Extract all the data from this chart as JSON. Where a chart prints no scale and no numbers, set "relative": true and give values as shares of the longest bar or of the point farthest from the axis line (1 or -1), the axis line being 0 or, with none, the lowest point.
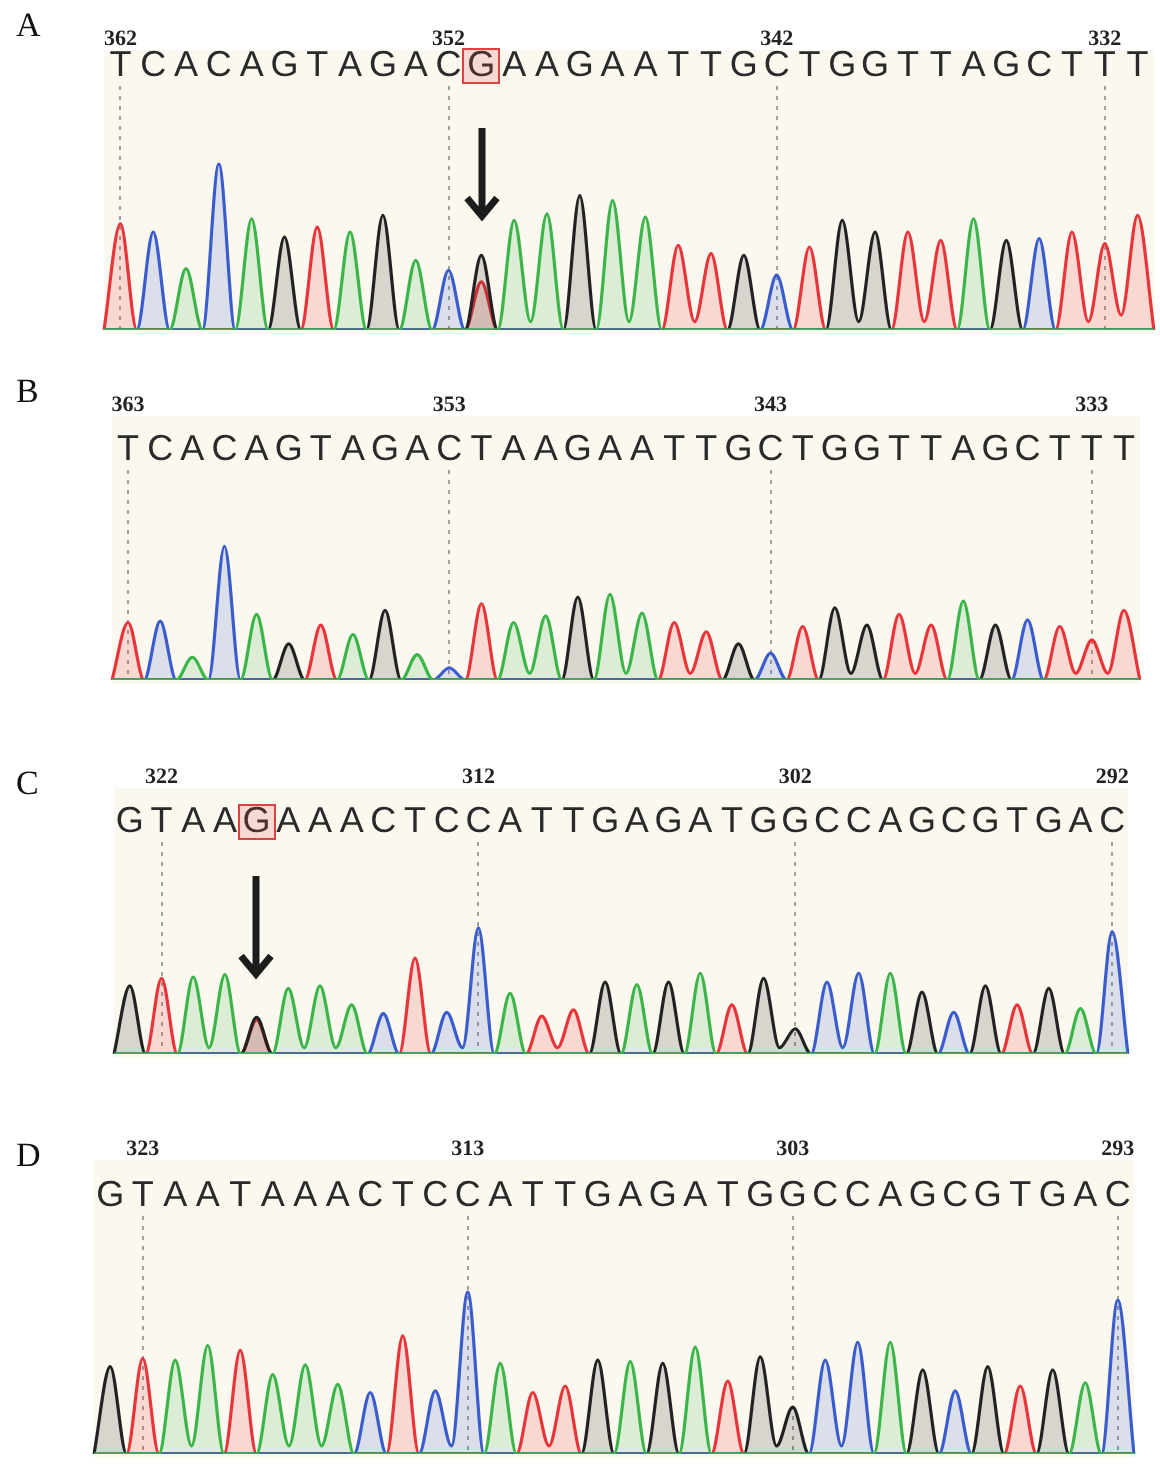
{
  "chart_data": [
    {
      "type": "area",
      "title": "A",
      "relative": true,
      "grid": "x",
      "categories": [
        null,
        "T",
        null,
        "C",
        null,
        "A",
        null,
        "C",
        null,
        "A",
        null,
        "G",
        null,
        "T",
        null,
        "A",
        null,
        "G",
        null,
        "A",
        null,
        "C",
        null,
        "G",
        null,
        "A",
        null,
        "A",
        null,
        "G",
        null,
        "A",
        null,
        "A",
        null,
        "T",
        null,
        "T",
        null,
        "G",
        null,
        "C",
        null,
        "T",
        null,
        "G",
        null,
        "G",
        null,
        "T",
        null,
        "T",
        null,
        "A",
        null,
        "G",
        null,
        "C",
        null,
        "T",
        null,
        "T",
        null,
        "T",
        null
      ],
      "x2lim": [
        362.5,
        330.5
      ],
      "x2ticks": [
        362,
        352,
        342,
        332
      ],
      "series": [
        {
          "color": "#3bb44a",
          "values": [
            0,
            0,
            0,
            0,
            0,
            0.37,
            0,
            0,
            0,
            0.67,
            0,
            0,
            0,
            0,
            0,
            0.59,
            0,
            0,
            0,
            0.42,
            0,
            0,
            0,
            0,
            0,
            0.66,
            0.05,
            0.7,
            0,
            0,
            0,
            0.78,
            0.05,
            0.68,
            0,
            0,
            0,
            0,
            0,
            0,
            0,
            0,
            0,
            0,
            0,
            0,
            0,
            0,
            0,
            0,
            0,
            0,
            0,
            0.67,
            0,
            0,
            0,
            0,
            0,
            0,
            0,
            0,
            0,
            0,
            0
          ]
        },
        {
          "color": "#3a5ccc",
          "values": [
            0,
            0,
            0,
            0.59,
            0,
            0,
            0,
            1,
            0,
            0,
            0,
            0,
            0,
            0,
            0,
            0,
            0,
            0,
            0,
            0,
            0,
            0.36,
            0,
            0,
            0,
            0,
            0,
            0,
            0,
            0,
            0,
            0,
            0,
            0,
            0,
            0,
            0,
            0,
            0,
            0,
            0,
            0.33,
            0,
            0,
            0,
            0,
            0,
            0,
            0,
            0,
            0,
            0,
            0,
            0,
            0,
            0,
            0,
            0.55,
            0,
            0,
            0,
            0,
            0,
            0,
            0
          ]
        },
        {
          "color": "#222222",
          "values": [
            0,
            0,
            0,
            0,
            0,
            0,
            0,
            0,
            0,
            0,
            0,
            0.56,
            0,
            0,
            0,
            0,
            0,
            0.69,
            0,
            0,
            0,
            0,
            0,
            0.45,
            0,
            0,
            0,
            0,
            0,
            0.81,
            0,
            0,
            0,
            0,
            0,
            0,
            0,
            0,
            0,
            0.45,
            0,
            0,
            0,
            0,
            0,
            0.66,
            0.05,
            0.59,
            0,
            0,
            0,
            0,
            0,
            0,
            0,
            0.54,
            0,
            0,
            0,
            0,
            0,
            0,
            0,
            0,
            0
          ]
        },
        {
          "color": "#e8353b",
          "values": [
            0,
            0.64,
            0,
            0,
            0,
            0,
            0,
            0,
            0,
            0,
            0,
            0,
            0,
            0.62,
            0,
            0,
            0,
            0,
            0,
            0,
            0,
            0,
            0,
            0.29,
            0,
            0,
            0,
            0,
            0,
            0,
            0,
            0,
            0,
            0,
            0,
            0.51,
            0.05,
            0.46,
            0,
            0,
            0,
            0,
            0,
            0.5,
            0,
            0,
            0,
            0,
            0,
            0.59,
            0.05,
            0.54,
            0,
            0,
            0,
            0,
            0,
            0,
            0,
            0.59,
            0.05,
            0.52,
            0.09,
            0.69,
            0
          ]
        }
      ]
    },
    {
      "type": "area",
      "title": "B",
      "relative": true,
      "grid": "x",
      "categories": [
        null,
        "T",
        null,
        "C",
        null,
        "A",
        null,
        "C",
        null,
        "A",
        null,
        "G",
        null,
        "T",
        null,
        "A",
        null,
        "G",
        null,
        "A",
        null,
        "C",
        null,
        "T",
        null,
        "A",
        null,
        "A",
        null,
        "G",
        null,
        "A",
        null,
        "A",
        null,
        "T",
        null,
        "T",
        null,
        "G",
        null,
        "C",
        null,
        "T",
        null,
        "G",
        null,
        "G",
        null,
        "T",
        null,
        "T",
        null,
        "A",
        null,
        "G",
        null,
        "C",
        null,
        "T",
        null,
        "T",
        null,
        "T",
        null
      ],
      "x2lim": [
        363.5,
        331.5
      ],
      "x2ticks": [
        363,
        353,
        343,
        333
      ],
      "series": [
        {
          "color": "#3bb44a",
          "values": [
            0,
            0,
            0,
            0,
            0,
            0.17,
            0,
            0,
            0,
            0.49,
            0,
            0,
            0,
            0,
            0,
            0.34,
            0,
            0,
            0,
            0.19,
            0,
            0,
            0,
            0,
            0,
            0.43,
            0.05,
            0.48,
            0,
            0,
            0,
            0.64,
            0.05,
            0.5,
            0,
            0,
            0,
            0,
            0,
            0,
            0,
            0,
            0,
            0,
            0,
            0,
            0,
            0,
            0,
            0,
            0,
            0,
            0,
            0.59,
            0,
            0,
            0,
            0,
            0,
            0,
            0,
            0,
            0,
            0,
            0
          ]
        },
        {
          "color": "#3a5ccc",
          "values": [
            0,
            0,
            0,
            0.44,
            0,
            0,
            0,
            1,
            0,
            0,
            0,
            0,
            0,
            0,
            0,
            0,
            0,
            0,
            0,
            0,
            0,
            0.09,
            0,
            0,
            0,
            0,
            0,
            0,
            0,
            0,
            0,
            0,
            0,
            0,
            0,
            0,
            0,
            0,
            0,
            0,
            0,
            0.2,
            0,
            0,
            0,
            0,
            0,
            0,
            0,
            0,
            0,
            0,
            0,
            0,
            0,
            0,
            0,
            0.45,
            0,
            0,
            0,
            0,
            0,
            0,
            0
          ]
        },
        {
          "color": "#222222",
          "values": [
            0,
            0,
            0,
            0,
            0,
            0,
            0,
            0,
            0,
            0,
            0,
            0.27,
            0,
            0,
            0,
            0,
            0,
            0.52,
            0,
            0,
            0,
            0,
            0,
            0,
            0,
            0,
            0,
            0,
            0,
            0.62,
            0,
            0,
            0,
            0,
            0,
            0,
            0,
            0,
            0,
            0.27,
            0,
            0,
            0,
            0,
            0,
            0.54,
            0.05,
            0.41,
            0,
            0,
            0,
            0,
            0,
            0,
            0,
            0.41,
            0,
            0,
            0,
            0,
            0,
            0,
            0,
            0,
            0
          ]
        },
        {
          "color": "#e8353b",
          "values": [
            0,
            0.43,
            0,
            0,
            0,
            0,
            0,
            0,
            0,
            0,
            0,
            0,
            0,
            0.41,
            0,
            0,
            0,
            0,
            0,
            0,
            0,
            0,
            0,
            0.57,
            0,
            0,
            0,
            0,
            0,
            0,
            0,
            0,
            0,
            0,
            0,
            0.43,
            0.05,
            0.36,
            0,
            0,
            0,
            0,
            0,
            0.4,
            0,
            0,
            0,
            0,
            0,
            0.49,
            0.05,
            0.41,
            0,
            0,
            0,
            0,
            0,
            0,
            0,
            0.4,
            0.05,
            0.3,
            0.05,
            0.52,
            0
          ]
        }
      ]
    },
    {
      "type": "area",
      "title": "C",
      "relative": true,
      "grid": "x",
      "categories": [
        null,
        "G",
        null,
        "T",
        null,
        "A",
        null,
        "A",
        null,
        "G",
        null,
        "A",
        null,
        "A",
        null,
        "A",
        null,
        "C",
        null,
        "T",
        null,
        "C",
        null,
        "C",
        null,
        "A",
        null,
        "T",
        null,
        "T",
        null,
        "G",
        null,
        "A",
        null,
        "G",
        null,
        "A",
        null,
        "T",
        null,
        "G",
        null,
        "G",
        null,
        "C",
        null,
        "C",
        null,
        "A",
        null,
        "G",
        null,
        "C",
        null,
        "G",
        null,
        "T",
        null,
        "G",
        null,
        "A",
        null,
        "C",
        null
      ],
      "x2lim": [
        323.5,
        291.5
      ],
      "x2ticks": [
        322,
        312,
        302,
        292
      ],
      "series": [
        {
          "color": "#3bb44a",
          "values": [
            0,
            0,
            0,
            0,
            0,
            0.61,
            0.05,
            0.63,
            0,
            0,
            0,
            0.52,
            0.05,
            0.54,
            0.05,
            0.39,
            0,
            0,
            0,
            0,
            0,
            0,
            0,
            0,
            0,
            0.48,
            0,
            0,
            0,
            0,
            0,
            0,
            0,
            0.55,
            0,
            0,
            0,
            0.64,
            0,
            0,
            0,
            0,
            0,
            0,
            0,
            0,
            0,
            0,
            0,
            0.64,
            0,
            0,
            0,
            0,
            0,
            0,
            0,
            0,
            0,
            0,
            0,
            0.36,
            0,
            0,
            0
          ]
        },
        {
          "color": "#3a5ccc",
          "values": [
            0,
            0,
            0,
            0,
            0,
            0,
            0,
            0,
            0,
            0,
            0,
            0,
            0,
            0,
            0,
            0,
            0,
            0.32,
            0,
            0,
            0,
            0.33,
            0.05,
            1,
            0,
            0,
            0,
            0,
            0,
            0,
            0,
            0,
            0,
            0,
            0,
            0,
            0,
            0,
            0,
            0,
            0,
            0,
            0,
            0,
            0,
            0.57,
            0.05,
            0.64,
            0,
            0,
            0,
            0,
            0,
            0.33,
            0,
            0,
            0,
            0,
            0,
            0,
            0,
            0,
            0,
            0.97,
            0
          ]
        },
        {
          "color": "#222222",
          "values": [
            0,
            0.54,
            0,
            0,
            0,
            0,
            0,
            0,
            0,
            0.29,
            0,
            0,
            0,
            0,
            0,
            0,
            0,
            0,
            0,
            0,
            0,
            0,
            0,
            0,
            0,
            0,
            0,
            0,
            0,
            0,
            0,
            0.57,
            0,
            0,
            0,
            0.57,
            0,
            0,
            0,
            0,
            0,
            0.6,
            0.05,
            0.2,
            0,
            0,
            0,
            0,
            0,
            0,
            0,
            0.49,
            0,
            0,
            0,
            0.54,
            0,
            0,
            0,
            0.52,
            0,
            0,
            0,
            0,
            0
          ]
        },
        {
          "color": "#e8353b",
          "values": [
            0,
            0,
            0,
            0.6,
            0,
            0,
            0,
            0,
            0,
            0.27,
            0,
            0,
            0,
            0,
            0,
            0,
            0,
            0,
            0,
            0.76,
            0,
            0,
            0,
            0,
            0,
            0,
            0,
            0.3,
            0.05,
            0.35,
            0,
            0,
            0,
            0,
            0,
            0,
            0,
            0,
            0,
            0.39,
            0,
            0,
            0,
            0,
            0,
            0,
            0,
            0,
            0,
            0,
            0,
            0,
            0,
            0,
            0,
            0,
            0,
            0.39,
            0,
            0,
            0,
            0,
            0,
            0,
            0
          ]
        }
      ]
    },
    {
      "type": "area",
      "title": "D",
      "relative": true,
      "grid": "x",
      "categories": [
        null,
        "G",
        null,
        "T",
        null,
        "A",
        null,
        "A",
        null,
        "T",
        null,
        "A",
        null,
        "A",
        null,
        "A",
        null,
        "C",
        null,
        "T",
        null,
        "C",
        null,
        "C",
        null,
        "A",
        null,
        "T",
        null,
        "T",
        null,
        "G",
        null,
        "A",
        null,
        "G",
        null,
        "A",
        null,
        "T",
        null,
        "G",
        null,
        "G",
        null,
        "C",
        null,
        "C",
        null,
        "A",
        null,
        "G",
        null,
        "C",
        null,
        "G",
        null,
        "T",
        null,
        "G",
        null,
        "A",
        null,
        "C",
        null
      ],
      "x2lim": [
        324.5,
        292.5
      ],
      "x2ticks": [
        323,
        313,
        303,
        293
      ],
      "series": [
        {
          "color": "#3bb44a",
          "values": [
            0,
            0,
            0,
            0,
            0,
            0.58,
            0.05,
            0.67,
            0,
            0,
            0,
            0.49,
            0.05,
            0.55,
            0.05,
            0.43,
            0,
            0,
            0,
            0,
            0,
            0,
            0,
            0,
            0,
            0.56,
            0,
            0,
            0,
            0,
            0,
            0,
            0,
            0.57,
            0,
            0,
            0,
            0.66,
            0,
            0,
            0,
            0,
            0,
            0,
            0,
            0,
            0,
            0,
            0,
            0.69,
            0,
            0,
            0,
            0,
            0,
            0,
            0,
            0,
            0,
            0,
            0,
            0.44,
            0,
            0,
            0
          ]
        },
        {
          "color": "#3a5ccc",
          "values": [
            0,
            0,
            0,
            0,
            0,
            0,
            0,
            0,
            0,
            0,
            0,
            0,
            0,
            0,
            0,
            0,
            0,
            0.38,
            0,
            0,
            0,
            0.39,
            0.05,
            1,
            0,
            0,
            0,
            0,
            0,
            0,
            0,
            0,
            0,
            0,
            0,
            0,
            0,
            0,
            0,
            0,
            0,
            0,
            0,
            0,
            0,
            0.58,
            0.05,
            0.69,
            0,
            0,
            0,
            0,
            0,
            0.39,
            0,
            0,
            0,
            0,
            0,
            0,
            0,
            0,
            0,
            0.95,
            0
          ]
        },
        {
          "color": "#222222",
          "values": [
            0,
            0.54,
            0,
            0,
            0,
            0,
            0,
            0,
            0,
            0,
            0,
            0,
            0,
            0,
            0,
            0,
            0,
            0,
            0,
            0,
            0,
            0,
            0,
            0,
            0,
            0,
            0,
            0,
            0,
            0,
            0,
            0.58,
            0,
            0,
            0,
            0.56,
            0,
            0,
            0,
            0,
            0,
            0.6,
            0.05,
            0.29,
            0,
            0,
            0,
            0,
            0,
            0,
            0,
            0.52,
            0,
            0,
            0,
            0.54,
            0,
            0,
            0,
            0.52,
            0,
            0,
            0,
            0,
            0
          ]
        },
        {
          "color": "#e8353b",
          "values": [
            0,
            0,
            0,
            0.59,
            0,
            0,
            0,
            0,
            0,
            0.64,
            0,
            0,
            0,
            0,
            0,
            0,
            0,
            0,
            0,
            0.73,
            0,
            0,
            0,
            0,
            0,
            0,
            0,
            0.38,
            0.05,
            0.42,
            0,
            0,
            0,
            0,
            0,
            0,
            0,
            0,
            0,
            0.45,
            0,
            0,
            0,
            0,
            0,
            0,
            0,
            0,
            0,
            0,
            0,
            0,
            0,
            0,
            0,
            0,
            0,
            0.42,
            0,
            0,
            0,
            0,
            0,
            0,
            0
          ]
        }
      ]
    }
  ]
}
